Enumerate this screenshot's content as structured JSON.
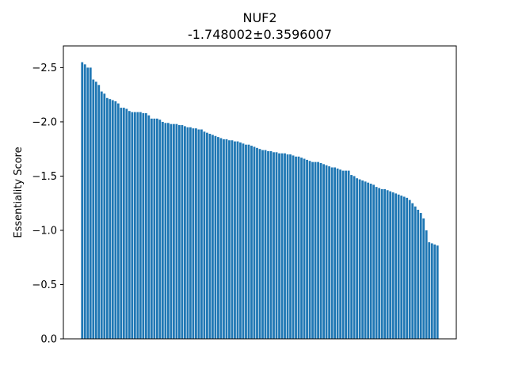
{
  "chart_data": {
    "type": "bar",
    "title": "NUF2",
    "subtitle": "-1.748002±0.3596007",
    "xlabel": "",
    "ylabel": "Essentiality Score",
    "y_inverted": true,
    "ylim": [
      0,
      -2.7
    ],
    "yticks": [
      {
        "value": 0.0,
        "label": "0.0"
      },
      {
        "value": -0.5,
        "label": "−0.5"
      },
      {
        "value": -1.0,
        "label": "−1.0"
      },
      {
        "value": -1.5,
        "label": "−1.5"
      },
      {
        "value": -2.0,
        "label": "−2.0"
      },
      {
        "value": -2.5,
        "label": "−2.5"
      }
    ],
    "grid": false,
    "bar_color": "#1f77b4",
    "values": [
      -2.55,
      -2.53,
      -2.5,
      -2.5,
      -2.39,
      -2.37,
      -2.34,
      -2.28,
      -2.26,
      -2.22,
      -2.21,
      -2.2,
      -2.19,
      -2.17,
      -2.13,
      -2.13,
      -2.12,
      -2.1,
      -2.09,
      -2.09,
      -2.09,
      -2.09,
      -2.08,
      -2.08,
      -2.06,
      -2.03,
      -2.03,
      -2.03,
      -2.02,
      -2.0,
      -1.99,
      -1.99,
      -1.98,
      -1.98,
      -1.98,
      -1.97,
      -1.97,
      -1.96,
      -1.95,
      -1.95,
      -1.94,
      -1.94,
      -1.93,
      -1.93,
      -1.91,
      -1.9,
      -1.89,
      -1.88,
      -1.87,
      -1.86,
      -1.85,
      -1.84,
      -1.84,
      -1.83,
      -1.83,
      -1.82,
      -1.82,
      -1.81,
      -1.8,
      -1.79,
      -1.79,
      -1.78,
      -1.77,
      -1.76,
      -1.75,
      -1.74,
      -1.74,
      -1.73,
      -1.73,
      -1.72,
      -1.72,
      -1.71,
      -1.71,
      -1.71,
      -1.7,
      -1.7,
      -1.69,
      -1.68,
      -1.68,
      -1.67,
      -1.66,
      -1.65,
      -1.64,
      -1.63,
      -1.63,
      -1.63,
      -1.62,
      -1.61,
      -1.6,
      -1.59,
      -1.58,
      -1.58,
      -1.57,
      -1.56,
      -1.55,
      -1.55,
      -1.55,
      -1.51,
      -1.5,
      -1.48,
      -1.47,
      -1.46,
      -1.45,
      -1.44,
      -1.43,
      -1.42,
      -1.4,
      -1.39,
      -1.38,
      -1.38,
      -1.37,
      -1.36,
      -1.35,
      -1.34,
      -1.33,
      -1.32,
      -1.31,
      -1.3,
      -1.28,
      -1.25,
      -1.22,
      -1.19,
      -1.16,
      -1.11,
      -1.0,
      -0.89,
      -0.88,
      -0.87,
      -0.86
    ]
  }
}
